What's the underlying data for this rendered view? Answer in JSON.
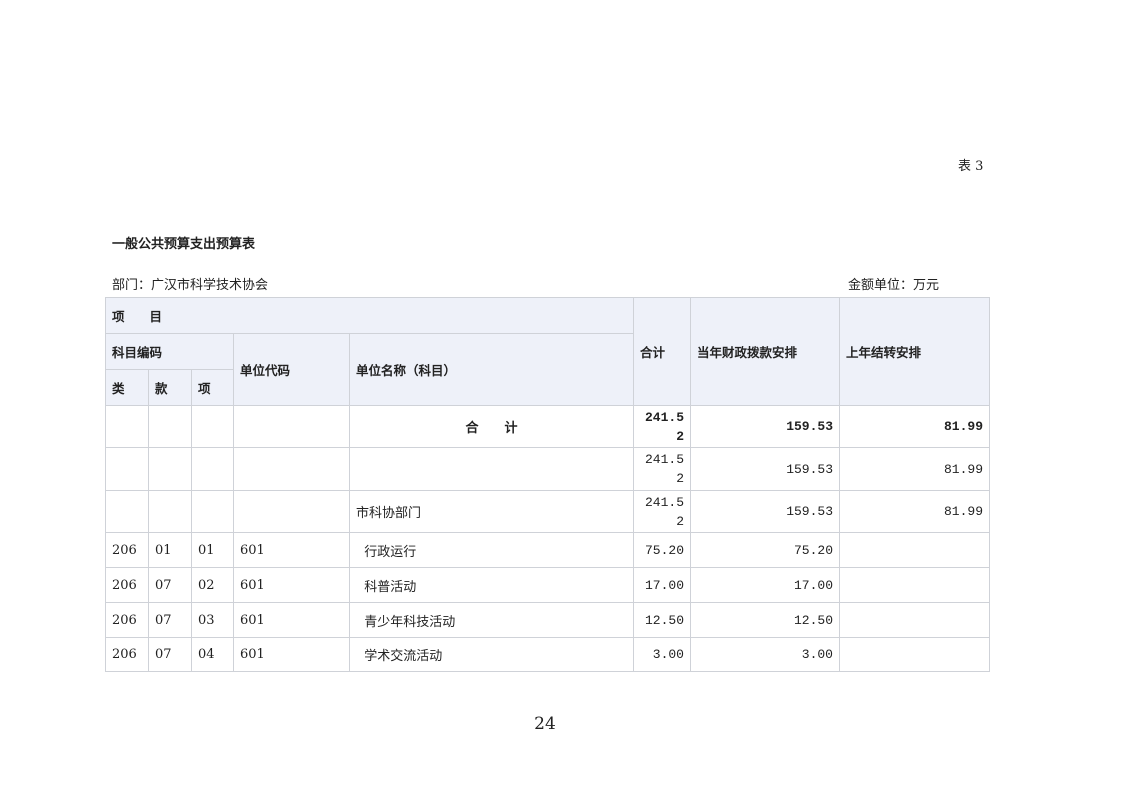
{
  "table_no": "表 3",
  "title": "一般公共预算支出预算表",
  "department": "部门：广汉市科学技术协会",
  "unit": "金额单位：万元",
  "headers": {
    "item": "项　　目",
    "subject_code": "科目编码",
    "lei": "类",
    "kuan": "款",
    "xiang": "项",
    "unit_code": "单位代码",
    "unit_name": "单位名称（科目）",
    "total": "合计",
    "current": "当年财政拨款安排",
    "carryover": "上年结转安排"
  },
  "total_row": {
    "name": "合　　计",
    "total": "241.52",
    "current": "159.53",
    "carryover": "81.99"
  },
  "rows": [
    {
      "lei": "",
      "kuan": "",
      "xiang": "",
      "code": "",
      "name": "",
      "total": "241.52",
      "current": "159.53",
      "carryover": "81.99"
    },
    {
      "lei": "",
      "kuan": "",
      "xiang": "",
      "code": "",
      "name": "市科协部门",
      "total": "241.52",
      "current": "159.53",
      "carryover": "81.99"
    },
    {
      "lei": "206",
      "kuan": "01",
      "xiang": "01",
      "code": "601",
      "name": "  行政运行",
      "total": "75.20",
      "current": "75.20",
      "carryover": ""
    },
    {
      "lei": "206",
      "kuan": "07",
      "xiang": "02",
      "code": "601",
      "name": "  科普活动",
      "total": "17.00",
      "current": "17.00",
      "carryover": ""
    },
    {
      "lei": "206",
      "kuan": "07",
      "xiang": "03",
      "code": "601",
      "name": "  青少年科技活动",
      "total": "12.50",
      "current": "12.50",
      "carryover": ""
    },
    {
      "lei": "206",
      "kuan": "07",
      "xiang": "04",
      "code": "601",
      "name": "  学术交流活动",
      "total": "3.00",
      "current": "3.00",
      "carryover": ""
    }
  ]
}
